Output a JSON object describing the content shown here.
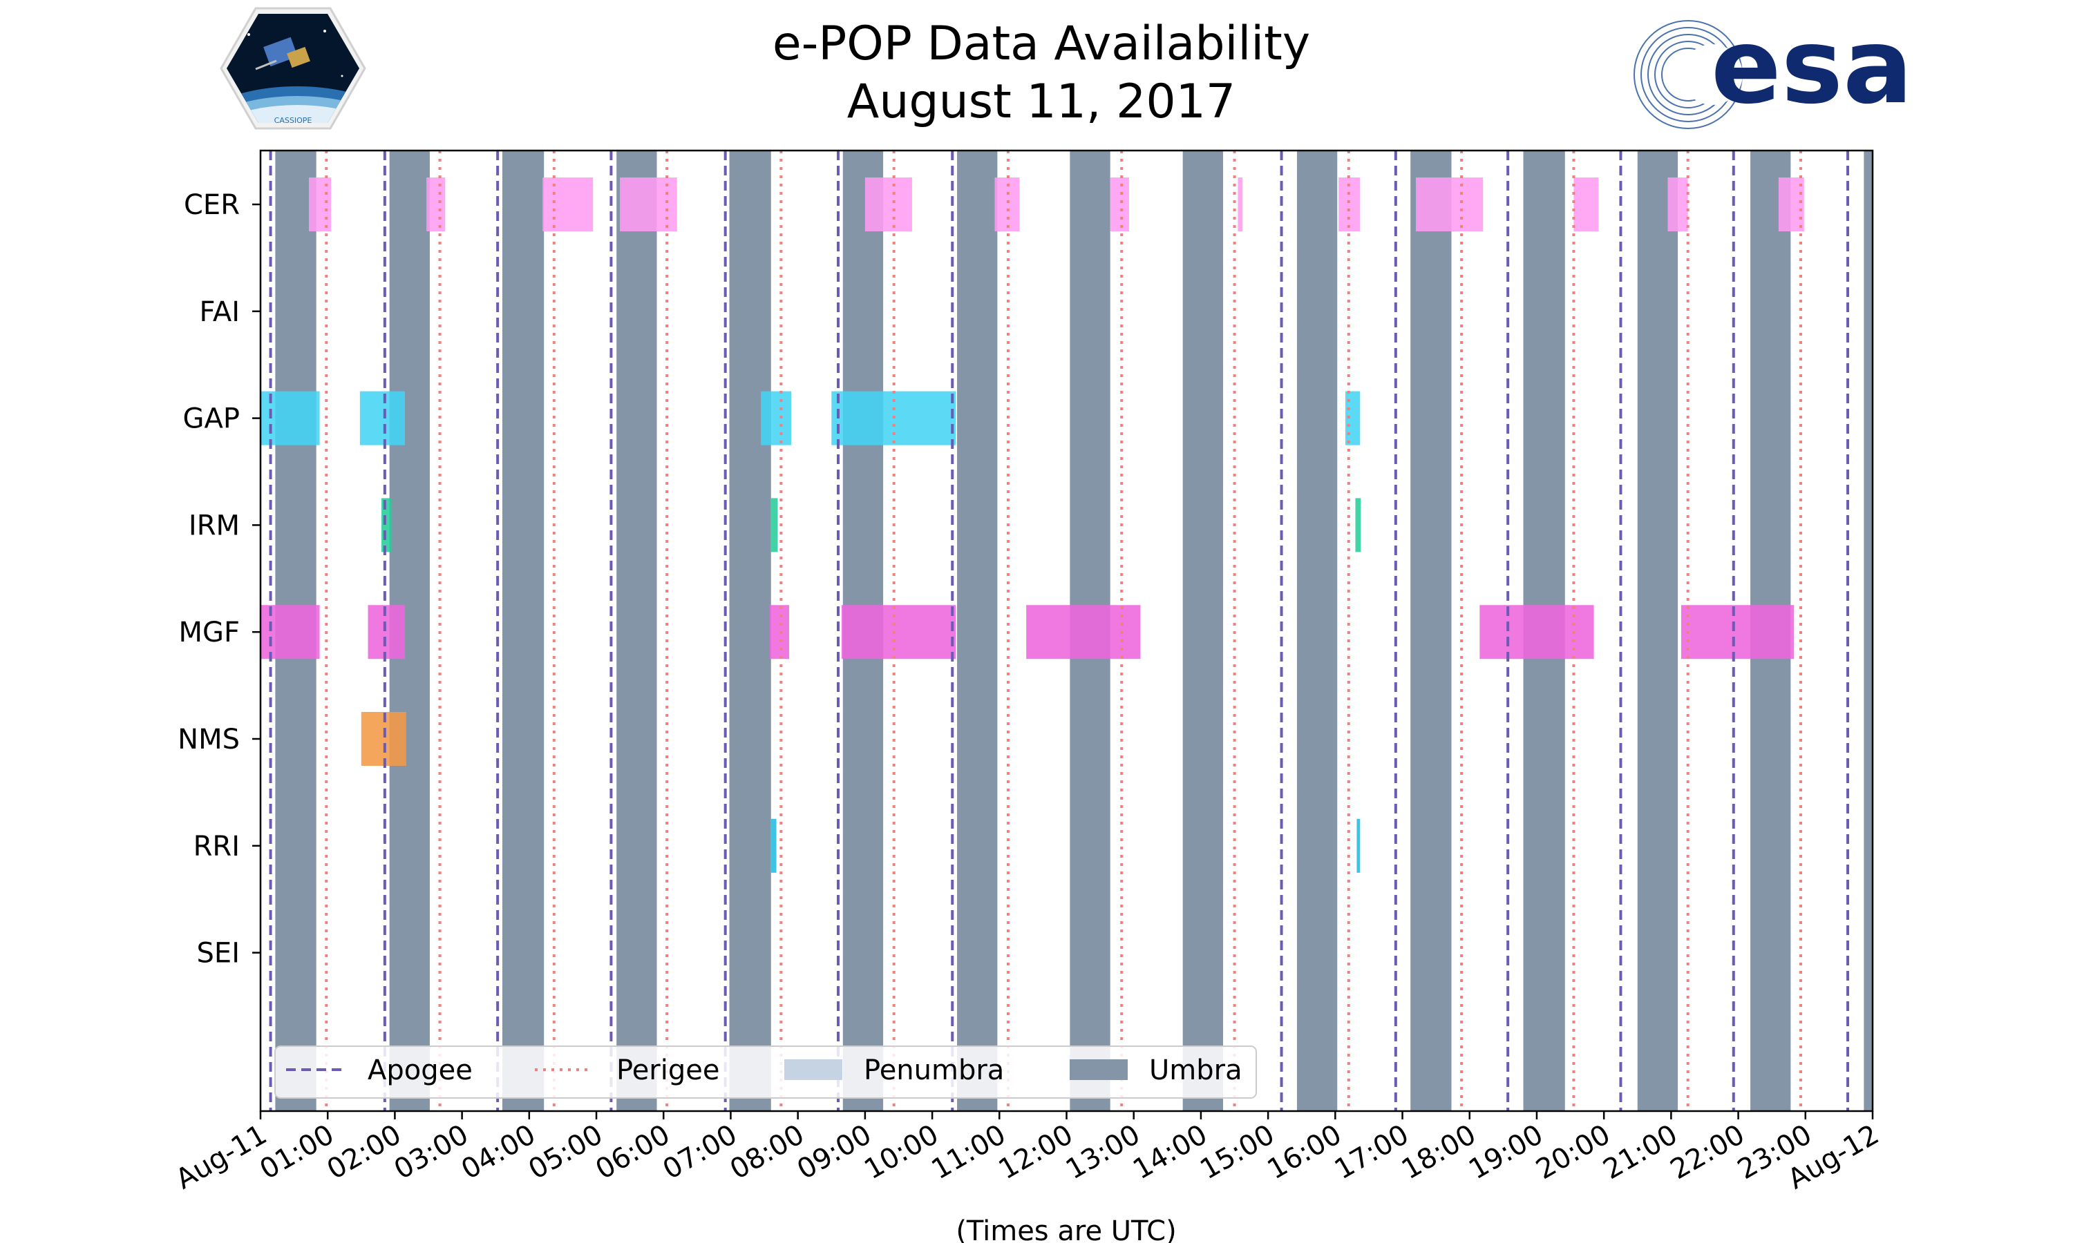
{
  "chart_data": {
    "type": "timeline",
    "title_line1": "e-POP Data Availability",
    "title_line2": "August 11, 2017",
    "xlabel": "(Times are UTC)",
    "xlim_hours": [
      0,
      24
    ],
    "x_tick_labels": [
      "Aug-11",
      "01:00",
      "02:00",
      "03:00",
      "04:00",
      "05:00",
      "06:00",
      "07:00",
      "08:00",
      "09:00",
      "10:00",
      "11:00",
      "12:00",
      "13:00",
      "14:00",
      "15:00",
      "16:00",
      "17:00",
      "18:00",
      "19:00",
      "20:00",
      "21:00",
      "22:00",
      "23:00",
      "Aug-12"
    ],
    "instruments": [
      "CER",
      "FAI",
      "GAP",
      "IRM",
      "MGF",
      "NMS",
      "RRI",
      "SEI"
    ],
    "apogee_hours": [
      0.15,
      1.85,
      3.53,
      5.22,
      6.92,
      8.6,
      10.3,
      15.2,
      16.9,
      18.57,
      20.25,
      21.93,
      23.63
    ],
    "perigee_hours": [
      0.98,
      2.67,
      4.37,
      6.05,
      7.75,
      9.43,
      11.13,
      12.82,
      14.5,
      16.2,
      17.88,
      19.55,
      21.25,
      22.93
    ],
    "umbra_hours": [
      [
        0.22,
        0.83
      ],
      [
        1.92,
        2.52
      ],
      [
        3.6,
        4.22
      ],
      [
        5.3,
        5.9
      ],
      [
        6.98,
        7.6
      ],
      [
        8.67,
        9.27
      ],
      [
        10.37,
        10.97
      ],
      [
        12.05,
        12.65
      ],
      [
        13.73,
        14.33
      ],
      [
        15.43,
        16.03
      ],
      [
        17.12,
        17.73
      ],
      [
        18.8,
        19.42
      ],
      [
        20.5,
        21.1
      ],
      [
        22.18,
        22.78
      ],
      [
        23.87,
        24.0
      ]
    ],
    "legend": [
      "Apogee",
      "Perigee",
      "Penumbra",
      "Umbra"
    ],
    "legend_position": "lower-left",
    "colors": {
      "umbra": "#8495a8",
      "penumbra": "#c5d3e3",
      "apogee": "#6b5bb5",
      "perigee": "#f08080",
      "CER": "#ff9cf2",
      "GAP": "#44d4f4",
      "IRM": "#27cc9a",
      "MGF": "#ee66dd",
      "NMS": "#f29a46",
      "RRI": "#22bbe0"
    },
    "segments": [
      {
        "inst": "CER",
        "start": 0.72,
        "end": 1.05
      },
      {
        "inst": "CER",
        "start": 2.47,
        "end": 2.75
      },
      {
        "inst": "CER",
        "start": 4.2,
        "end": 4.95
      },
      {
        "inst": "CER",
        "start": 5.35,
        "end": 6.2
      },
      {
        "inst": "CER",
        "start": 9.0,
        "end": 9.7
      },
      {
        "inst": "CER",
        "start": 10.93,
        "end": 11.3
      },
      {
        "inst": "CER",
        "start": 12.65,
        "end": 12.93
      },
      {
        "inst": "CER",
        "start": 14.55,
        "end": 14.62
      },
      {
        "inst": "CER",
        "start": 16.05,
        "end": 16.37
      },
      {
        "inst": "CER",
        "start": 17.2,
        "end": 18.2
      },
      {
        "inst": "CER",
        "start": 19.55,
        "end": 19.92
      },
      {
        "inst": "CER",
        "start": 20.95,
        "end": 21.25
      },
      {
        "inst": "CER",
        "start": 22.6,
        "end": 22.98
      },
      {
        "inst": "GAP",
        "start": 0.0,
        "end": 0.88
      },
      {
        "inst": "GAP",
        "start": 1.48,
        "end": 2.15
      },
      {
        "inst": "GAP",
        "start": 7.45,
        "end": 7.9
      },
      {
        "inst": "GAP",
        "start": 8.5,
        "end": 10.35
      },
      {
        "inst": "GAP",
        "start": 16.15,
        "end": 16.37
      },
      {
        "inst": "IRM",
        "start": 1.8,
        "end": 1.95
      },
      {
        "inst": "IRM",
        "start": 7.6,
        "end": 7.7
      },
      {
        "inst": "IRM",
        "start": 16.3,
        "end": 16.38
      },
      {
        "inst": "MGF",
        "start": 0.0,
        "end": 0.88
      },
      {
        "inst": "MGF",
        "start": 1.6,
        "end": 2.15
      },
      {
        "inst": "MGF",
        "start": 7.58,
        "end": 7.87
      },
      {
        "inst": "MGF",
        "start": 8.65,
        "end": 10.35
      },
      {
        "inst": "MGF",
        "start": 11.4,
        "end": 13.1
      },
      {
        "inst": "MGF",
        "start": 18.15,
        "end": 19.85
      },
      {
        "inst": "MGF",
        "start": 21.15,
        "end": 22.83
      },
      {
        "inst": "NMS",
        "start": 1.5,
        "end": 2.17
      },
      {
        "inst": "RRI",
        "start": 7.6,
        "end": 7.68
      },
      {
        "inst": "RRI",
        "start": 16.32,
        "end": 16.37
      }
    ]
  },
  "logos": {
    "cassiope_text": "CASSIOPE",
    "esa_text": "esa"
  }
}
